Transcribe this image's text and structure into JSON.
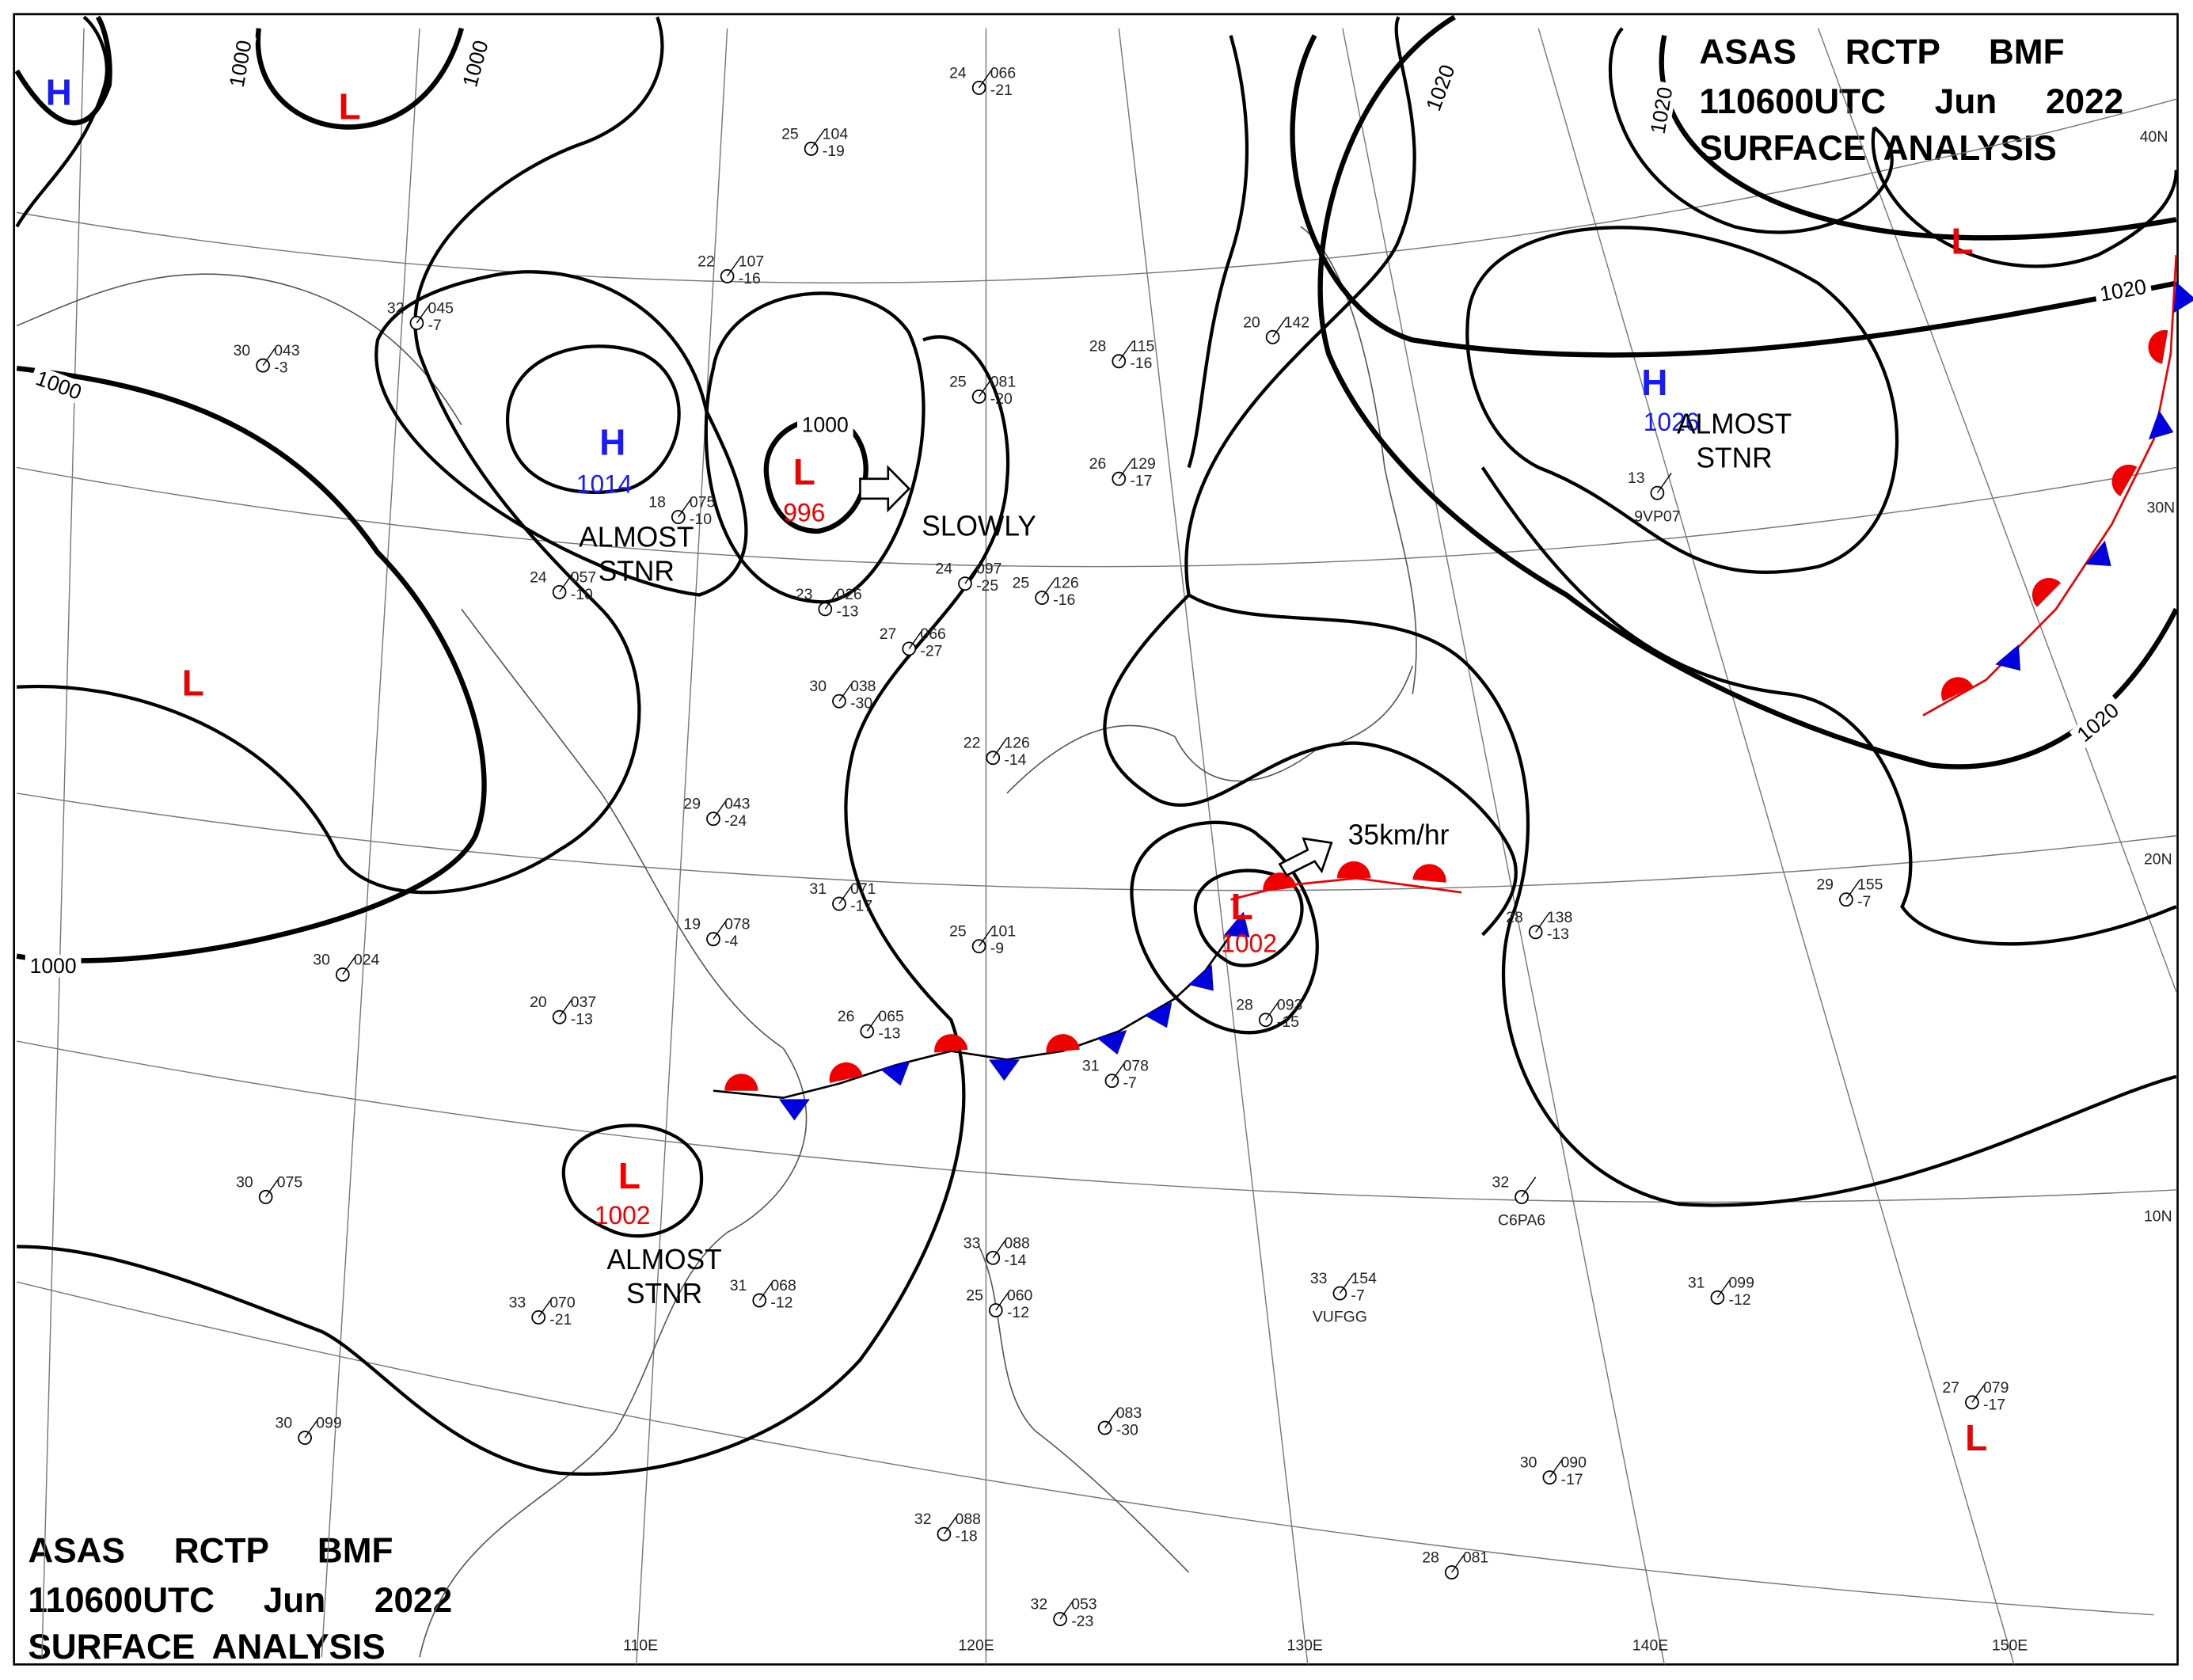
{
  "header": {
    "lines": [
      "ASAS RCTP BMF",
      "110600UTC Jun 2022",
      "SURFACE ANALYSIS"
    ]
  },
  "centers": [
    {
      "symbol": "H"
    },
    {
      "symbol": "L"
    },
    {
      "symbol": "H",
      "pressure": 1014,
      "note_lines": [
        "ALMOST",
        "STNR"
      ]
    },
    {
      "symbol": "L",
      "pressure": 996,
      "note_lines": [
        "SLOWLY"
      ]
    },
    {
      "symbol": "L"
    },
    {
      "symbol": "H",
      "pressure": 1026,
      "note_lines": [
        "ALMOST",
        "STNR"
      ]
    },
    {
      "symbol": "L"
    },
    {
      "symbol": "L",
      "pressure": 1002,
      "note_lines": [
        "35km/hr"
      ]
    },
    {
      "symbol": "L",
      "pressure": 1002,
      "note_lines": [
        "ALMOST",
        "STNR"
      ]
    },
    {
      "symbol": "L"
    }
  ],
  "isobar_labels": [
    1000,
    1000,
    1000,
    1000,
    1000,
    1020,
    1020,
    1020,
    1020
  ],
  "latitude_labels": [
    "40N",
    "30N",
    "20N",
    "10N"
  ],
  "longitude_labels": [
    "110E",
    "120E",
    "130E",
    "140E",
    "150E"
  ],
  "stations": [
    {
      "t": 24,
      "p": "066",
      "d": -21
    },
    {
      "t": 25,
      "p": "104",
      "d": -19
    },
    {
      "t": 22,
      "p": "107",
      "d": -16
    },
    {
      "t": 32,
      "p": "045",
      "d": -7
    },
    {
      "t": 30,
      "p": "043",
      "d": -3
    },
    {
      "t": 18,
      "p": "075",
      "d": -10
    },
    {
      "t": 24,
      "p": "057",
      "d": -10
    },
    {
      "t": 23,
      "p": "026",
      "d": -13
    },
    {
      "t": 27,
      "p": "066",
      "d": -27
    },
    {
      "t": 24,
      "p": "097",
      "d": -25
    },
    {
      "t": 25,
      "p": "126",
      "d": -16
    },
    {
      "t": 28,
      "p": "115",
      "d": -16
    },
    {
      "t": 25,
      "p": "081",
      "d": -20
    },
    {
      "t": 26,
      "p": "129",
      "d": -17
    },
    {
      "t": 30,
      "p": "038",
      "d": -30
    },
    {
      "t": 22,
      "p": "126",
      "d": -14
    },
    {
      "t": 29,
      "p": "043",
      "d": -24
    },
    {
      "t": 31,
      "p": "071",
      "d": -17
    },
    {
      "t": 19,
      "p": "078",
      "d": -4
    },
    {
      "t": 25,
      "p": "101",
      "d": -9
    },
    {
      "t": 20,
      "p": "037",
      "d": -13
    },
    {
      "t": 30,
      "p": "024"
    },
    {
      "t": 26,
      "p": "065",
      "d": -13
    },
    {
      "t": 31,
      "p": "078",
      "d": -7
    },
    {
      "t": 28,
      "p": "138",
      "d": -13
    },
    {
      "t": 28,
      "p": "093",
      "d": -15
    },
    {
      "t": 30,
      "p": "075"
    },
    {
      "t": 33,
      "p": "070",
      "d": -21
    },
    {
      "t": 31,
      "p": "068",
      "d": -12
    },
    {
      "t": 33,
      "p": "154",
      "d": -7,
      "id": "VUFGG"
    },
    {
      "t": 31,
      "p": "099",
      "d": -12
    },
    {
      "t": 30,
      "p": "090",
      "d": -17
    },
    {
      "t": 27,
      "p": "079",
      "d": -17
    },
    {
      "t": 28,
      "p": "081"
    },
    {
      "t": 30,
      "p": "099"
    },
    {
      "t": 32,
      "p": "088",
      "d": -18
    },
    {
      "t": 32,
      "p": "053",
      "d": -23
    },
    {
      "t": 29,
      "p": "155",
      "d": -7
    },
    {
      "t": 13,
      "id": "9VP07"
    },
    {
      "t": 32,
      "id": "C6PA6"
    },
    {
      "t": 20,
      "p": "142"
    },
    {
      "t": 33,
      "p": "088",
      "d": -14
    },
    {
      "t": 25,
      "p": "060",
      "d": -12
    },
    {
      "p": "083",
      "d": -30
    }
  ]
}
